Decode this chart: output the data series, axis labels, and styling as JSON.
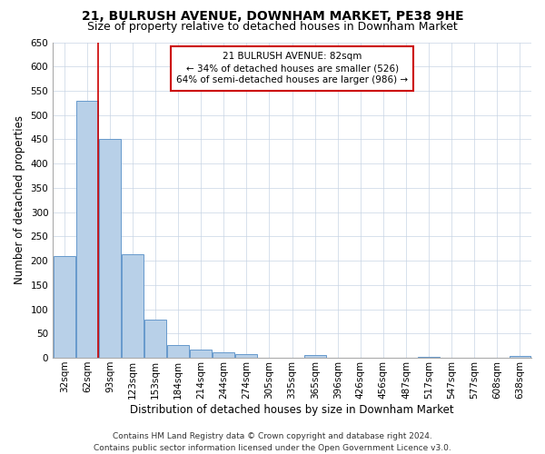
{
  "title1": "21, BULRUSH AVENUE, DOWNHAM MARKET, PE38 9HE",
  "title2": "Size of property relative to detached houses in Downham Market",
  "xlabel": "Distribution of detached houses by size in Downham Market",
  "ylabel": "Number of detached properties",
  "categories": [
    "32sqm",
    "62sqm",
    "93sqm",
    "123sqm",
    "153sqm",
    "184sqm",
    "214sqm",
    "244sqm",
    "274sqm",
    "305sqm",
    "335sqm",
    "365sqm",
    "396sqm",
    "426sqm",
    "456sqm",
    "487sqm",
    "517sqm",
    "547sqm",
    "577sqm",
    "608sqm",
    "638sqm"
  ],
  "values": [
    210,
    530,
    450,
    213,
    78,
    27,
    17,
    12,
    8,
    0,
    0,
    6,
    0,
    0,
    0,
    0,
    2,
    0,
    0,
    0,
    3
  ],
  "bar_color": "#b8d0e8",
  "bar_edge_color": "#6699cc",
  "vline_x": 1.5,
  "vline_color": "#cc0000",
  "annotation_line1": "21 BULRUSH AVENUE: 82sqm",
  "annotation_line2": "← 34% of detached houses are smaller (526)",
  "annotation_line3": "64% of semi-detached houses are larger (986) →",
  "annotation_box_color": "#ffffff",
  "annotation_box_edge": "#cc0000",
  "ylim": [
    0,
    650
  ],
  "yticks": [
    0,
    50,
    100,
    150,
    200,
    250,
    300,
    350,
    400,
    450,
    500,
    550,
    600,
    650
  ],
  "footer1": "Contains HM Land Registry data © Crown copyright and database right 2024.",
  "footer2": "Contains public sector information licensed under the Open Government Licence v3.0.",
  "bg_color": "#ffffff",
  "grid_color": "#c8d4e4",
  "title1_fontsize": 10,
  "title2_fontsize": 9,
  "xlabel_fontsize": 8.5,
  "ylabel_fontsize": 8.5,
  "tick_fontsize": 7.5,
  "annot_fontsize": 7.5,
  "footer_fontsize": 6.5
}
